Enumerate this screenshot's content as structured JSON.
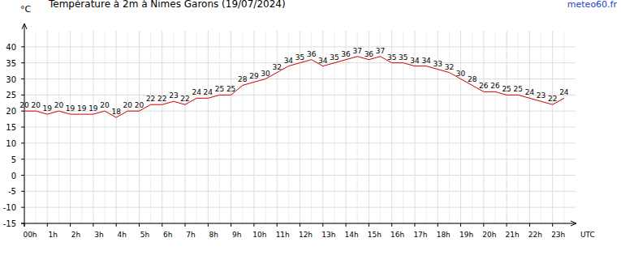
{
  "chart_data": {
    "type": "line",
    "title": "Température à 2m à Nimes Garons (19/07/2024)",
    "source": "meteo60.fr",
    "y_label": "°C",
    "x_label": "UTC",
    "x": [
      0,
      0.5,
      1,
      1.5,
      2,
      2.5,
      3,
      3.5,
      4,
      4.5,
      5,
      5.5,
      6,
      6.5,
      7,
      7.5,
      8,
      8.5,
      9,
      9.5,
      10,
      10.5,
      11,
      11.5,
      12,
      12.5,
      13,
      13.5,
      14,
      14.5,
      15,
      15.5,
      16,
      16.5,
      17,
      17.5,
      18,
      18.5,
      19,
      19.5,
      20,
      20.5,
      21,
      21.5,
      22,
      22.5,
      23,
      23.5
    ],
    "values": [
      20,
      20,
      19,
      20,
      19,
      19,
      19,
      20,
      18,
      20,
      20,
      22,
      22,
      23,
      22,
      24,
      24,
      25,
      25,
      28,
      29,
      30,
      32,
      34,
      35,
      36,
      34,
      35,
      36,
      37,
      36,
      37,
      35,
      35,
      34,
      34,
      33,
      32,
      30,
      28,
      26,
      26,
      25,
      25,
      24,
      23,
      22,
      24
    ],
    "color": "#cc0000",
    "xlim": [
      0,
      24
    ],
    "xticks": [
      {
        "value": 0,
        "label": "00h"
      },
      {
        "value": 1,
        "label": "1h"
      },
      {
        "value": 2,
        "label": "2h"
      },
      {
        "value": 3,
        "label": "3h"
      },
      {
        "value": 4,
        "label": "4h"
      },
      {
        "value": 5,
        "label": "5h"
      },
      {
        "value": 6,
        "label": "6h"
      },
      {
        "value": 7,
        "label": "7h"
      },
      {
        "value": 8,
        "label": "8h"
      },
      {
        "value": 9,
        "label": "9h"
      },
      {
        "value": 10,
        "label": "10h"
      },
      {
        "value": 11,
        "label": "11h"
      },
      {
        "value": 12,
        "label": "12h"
      },
      {
        "value": 13,
        "label": "13h"
      },
      {
        "value": 14,
        "label": "14h"
      },
      {
        "value": 15,
        "label": "15h"
      },
      {
        "value": 16,
        "label": "16h"
      },
      {
        "value": 17,
        "label": "17h"
      },
      {
        "value": 18,
        "label": "18h"
      },
      {
        "value": 19,
        "label": "19h"
      },
      {
        "value": 20,
        "label": "20h"
      },
      {
        "value": 21,
        "label": "21h"
      },
      {
        "value": 22,
        "label": "22h"
      },
      {
        "value": 23,
        "label": "23h"
      }
    ],
    "ylim": [
      -15,
      45
    ],
    "yticks": [
      -15,
      -10,
      -5,
      0,
      5,
      10,
      15,
      20,
      25,
      30,
      35,
      40
    ],
    "grid": true,
    "data_labels": true
  }
}
